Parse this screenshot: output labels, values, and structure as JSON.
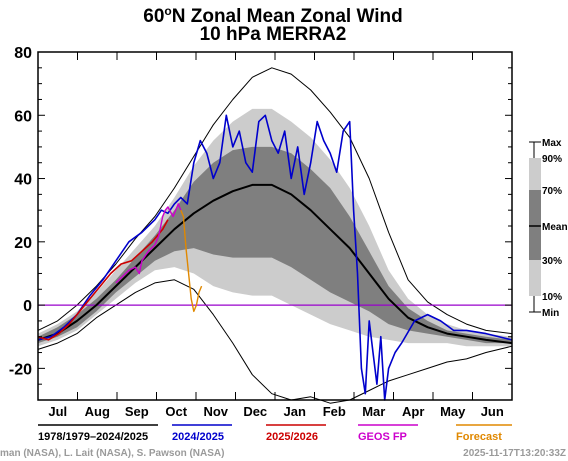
{
  "chart_data": {
    "type": "line",
    "title": "60°N Zonal Mean Zonal Wind",
    "subtitle": "10 hPa   MERRA2",
    "ylim": [
      -30,
      80
    ],
    "yticks": [
      -20,
      0,
      20,
      40,
      60,
      80
    ],
    "xlim": [
      0,
      365
    ],
    "months": [
      "Jul",
      "Aug",
      "Sep",
      "Oct",
      "Nov",
      "Dec",
      "Jan",
      "Feb",
      "Mar",
      "Apr",
      "May",
      "Jun"
    ],
    "reference_line": {
      "y": 0,
      "color": "#9900cc"
    },
    "climatology": {
      "day": [
        0,
        15,
        30,
        45,
        60,
        75,
        90,
        105,
        120,
        135,
        150,
        165,
        180,
        195,
        210,
        225,
        240,
        255,
        270,
        285,
        300,
        315,
        330,
        345,
        365
      ],
      "mean": [
        -11,
        -9,
        -5,
        0,
        6,
        12,
        18,
        24,
        29,
        33,
        36,
        38,
        38,
        35,
        30,
        24,
        18,
        10,
        2,
        -4,
        -7,
        -9,
        -10,
        -11,
        -12
      ],
      "p30": [
        -12,
        -10,
        -7,
        -2,
        4,
        9,
        14,
        17,
        18,
        16,
        15,
        15,
        15,
        12,
        8,
        4,
        1,
        -2,
        -6,
        -8,
        -9,
        -10,
        -11,
        -12,
        -12
      ],
      "p70": [
        -10,
        -7,
        -3,
        2,
        8,
        15,
        22,
        30,
        39,
        45,
        49,
        50,
        50,
        48,
        43,
        37,
        28,
        17,
        6,
        -1,
        -5,
        -8,
        -9,
        -10,
        -11
      ],
      "p10": [
        -13,
        -11,
        -8,
        -3,
        2,
        7,
        11,
        12,
        10,
        6,
        4,
        3,
        3,
        0,
        -3,
        -6,
        -8,
        -10,
        -11,
        -12,
        -12,
        -12,
        -13,
        -13,
        -13
      ],
      "p90": [
        -9,
        -6,
        -2,
        4,
        11,
        18,
        25,
        34,
        44,
        52,
        58,
        62,
        62,
        58,
        53,
        46,
        37,
        25,
        11,
        2,
        -3,
        -6,
        -8,
        -9,
        -10
      ],
      "min": [
        -14,
        -12,
        -9,
        -4,
        0,
        4,
        7,
        8,
        5,
        -3,
        -12,
        -22,
        -28,
        -30,
        -29,
        -31,
        -30,
        -27,
        -24,
        -22,
        -20,
        -18,
        -17,
        -15,
        -13
      ],
      "max": [
        -8,
        -5,
        0,
        6,
        13,
        21,
        28,
        37,
        47,
        57,
        65,
        72,
        75,
        73,
        68,
        61,
        53,
        40,
        23,
        8,
        1,
        -3,
        -6,
        -8,
        -9
      ]
    },
    "series": [
      {
        "name": "1978/1979–2024/2025",
        "color": "#000000",
        "x": [
          0,
          15,
          30,
          45,
          60,
          75,
          90,
          105,
          120,
          135,
          150,
          165,
          180,
          195,
          210,
          225,
          240,
          255,
          270,
          285,
          300,
          315,
          330,
          345,
          365
        ],
        "y": [
          -11,
          -9,
          -5,
          0,
          6,
          12,
          18,
          24,
          29,
          33,
          36,
          38,
          38,
          35,
          30,
          24,
          18,
          10,
          2,
          -4,
          -7,
          -9,
          -10,
          -11,
          -12
        ]
      },
      {
        "name": "2024/2025",
        "color": "#0000cc",
        "x": [
          0,
          10,
          20,
          30,
          40,
          50,
          60,
          70,
          80,
          90,
          95,
          100,
          105,
          110,
          115,
          120,
          125,
          130,
          135,
          140,
          145,
          150,
          155,
          160,
          165,
          170,
          175,
          180,
          185,
          190,
          195,
          200,
          205,
          210,
          215,
          220,
          225,
          230,
          235,
          240,
          243,
          246,
          249,
          252,
          255,
          258,
          261,
          264,
          267,
          270,
          275,
          280,
          290,
          300,
          310,
          320,
          330,
          345,
          365
        ],
        "y": [
          -11,
          -10,
          -7,
          -3,
          3,
          8,
          14,
          20,
          23,
          27,
          30,
          29,
          32,
          34,
          32,
          45,
          52,
          48,
          40,
          45,
          60,
          50,
          55,
          45,
          42,
          58,
          60,
          52,
          48,
          55,
          40,
          50,
          35,
          45,
          58,
          52,
          48,
          42,
          55,
          58,
          30,
          10,
          -20,
          -28,
          -5,
          -15,
          -25,
          -10,
          -30,
          -20,
          -15,
          -12,
          -5,
          -3,
          -5,
          -8,
          -8,
          -9,
          -11
        ]
      },
      {
        "name": "2025/2026",
        "color": "#cc0000",
        "x": [
          0,
          8,
          16,
          24,
          32,
          40,
          48,
          56,
          64,
          72,
          80,
          88,
          96,
          100
        ],
        "y": [
          -10,
          -11,
          -9,
          -6,
          -2,
          2,
          6,
          10,
          13,
          14,
          17,
          20,
          24,
          27
        ]
      },
      {
        "name": "GEOS FP",
        "color": "#cc00cc",
        "x": [
          60,
          65,
          70,
          75,
          78,
          80,
          85,
          90,
          93,
          96,
          98,
          100,
          104,
          108,
          110
        ],
        "y": [
          7,
          9,
          11,
          12,
          10,
          14,
          17,
          19,
          22,
          28,
          30,
          31,
          28,
          32,
          30
        ]
      },
      {
        "name": "Forecast",
        "color": "#e08800",
        "x": [
          110,
          112,
          114,
          116,
          118,
          120,
          122,
          124,
          126
        ],
        "y": [
          30,
          28,
          18,
          10,
          2,
          -2,
          0,
          4,
          6
        ]
      }
    ],
    "legend": {
      "top": [
        {
          "label": "1978/1979–2024/2025",
          "color": "#000000"
        },
        {
          "label": "2024/2025",
          "color": "#0000cc"
        },
        {
          "label": "2025/2026",
          "color": "#cc0000"
        },
        {
          "label": "GEOS FP",
          "color": "#cc00cc"
        },
        {
          "label": "Forecast",
          "color": "#e08800"
        }
      ],
      "percentiles": [
        "Max",
        "90%",
        "70%",
        "Mean",
        "30%",
        "10%",
        "Min"
      ],
      "placement": "right"
    },
    "credit_left": "man (NASA), L. Lait (NASA), S. Pawson (NASA)",
    "credit_right": "2025-11-17T13:20:33Z",
    "colors": {
      "band_outer": "#cccccc",
      "band_inner": "#7f7f7f",
      "zero_line": "#9900cc"
    }
  }
}
